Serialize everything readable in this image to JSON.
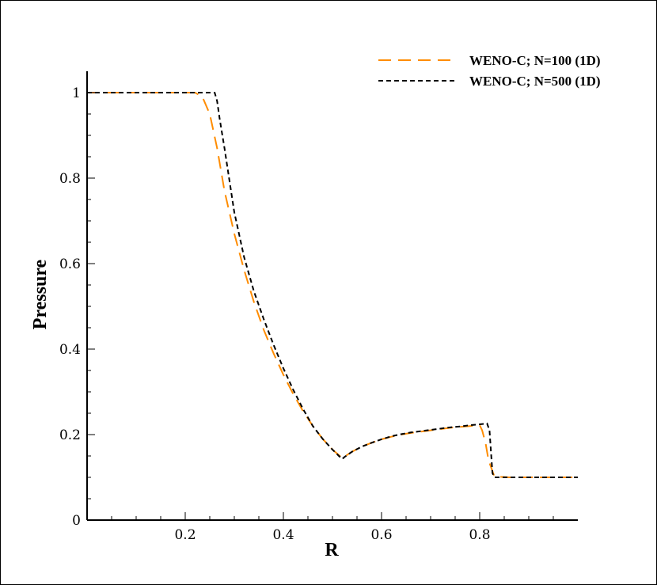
{
  "chart_data": {
    "type": "line",
    "xlabel": "R",
    "ylabel": "Pressure",
    "xlim": [
      0,
      1
    ],
    "ylim": [
      0,
      1.0
    ],
    "xticks": [
      0.2,
      0.4,
      0.6,
      0.8
    ],
    "xtick_labels": [
      "0.2",
      "0.4",
      "0.6",
      "0.8"
    ],
    "yticks": [
      0,
      0.2,
      0.4,
      0.6,
      0.8,
      1.0
    ],
    "ytick_labels": [
      "0",
      "0.2",
      "0.4",
      "0.6",
      "0.8",
      "1"
    ],
    "legend_position": "top-right",
    "grid": false,
    "series": [
      {
        "name": "WENO-C; N=100 (1D)",
        "color": "#ff8c00",
        "dash": "long-dash",
        "x": [
          0.0,
          0.05,
          0.1,
          0.15,
          0.2,
          0.22,
          0.235,
          0.25,
          0.265,
          0.28,
          0.3,
          0.32,
          0.34,
          0.36,
          0.38,
          0.4,
          0.42,
          0.44,
          0.46,
          0.48,
          0.5,
          0.52,
          0.54,
          0.56,
          0.58,
          0.6,
          0.62,
          0.64,
          0.66,
          0.68,
          0.7,
          0.72,
          0.74,
          0.76,
          0.78,
          0.8,
          0.805,
          0.812,
          0.818,
          0.83,
          0.86,
          0.9,
          0.95,
          1.0
        ],
        "y": [
          1.0,
          1.0,
          1.0,
          1.0,
          1.0,
          1.0,
          0.99,
          0.95,
          0.87,
          0.77,
          0.67,
          0.585,
          0.51,
          0.445,
          0.39,
          0.34,
          0.295,
          0.255,
          0.22,
          0.19,
          0.165,
          0.145,
          0.16,
          0.172,
          0.181,
          0.189,
          0.195,
          0.2,
          0.204,
          0.207,
          0.21,
          0.213,
          0.216,
          0.218,
          0.22,
          0.222,
          0.21,
          0.18,
          0.14,
          0.102,
          0.1,
          0.1,
          0.1,
          0.1
        ]
      },
      {
        "name": "WENO-C; N=500 (1D)",
        "color": "#000000",
        "dash": "short-dash",
        "x": [
          0.0,
          0.05,
          0.1,
          0.15,
          0.2,
          0.23,
          0.255,
          0.26,
          0.265,
          0.27,
          0.28,
          0.3,
          0.32,
          0.34,
          0.36,
          0.38,
          0.4,
          0.42,
          0.44,
          0.46,
          0.48,
          0.5,
          0.515,
          0.52,
          0.525,
          0.54,
          0.56,
          0.58,
          0.6,
          0.62,
          0.64,
          0.66,
          0.68,
          0.7,
          0.72,
          0.74,
          0.76,
          0.78,
          0.8,
          0.815,
          0.82,
          0.823,
          0.826,
          0.83,
          0.86,
          0.9,
          0.95,
          1.0
        ],
        "y": [
          1.0,
          1.0,
          1.0,
          1.0,
          1.0,
          1.0,
          1.0,
          1.0,
          0.98,
          0.94,
          0.87,
          0.72,
          0.615,
          0.535,
          0.47,
          0.41,
          0.355,
          0.305,
          0.26,
          0.22,
          0.19,
          0.165,
          0.148,
          0.143,
          0.148,
          0.16,
          0.172,
          0.181,
          0.189,
          0.196,
          0.201,
          0.205,
          0.208,
          0.211,
          0.214,
          0.217,
          0.219,
          0.222,
          0.224,
          0.226,
          0.21,
          0.16,
          0.11,
          0.1,
          0.1,
          0.1,
          0.1,
          0.1
        ]
      }
    ]
  }
}
